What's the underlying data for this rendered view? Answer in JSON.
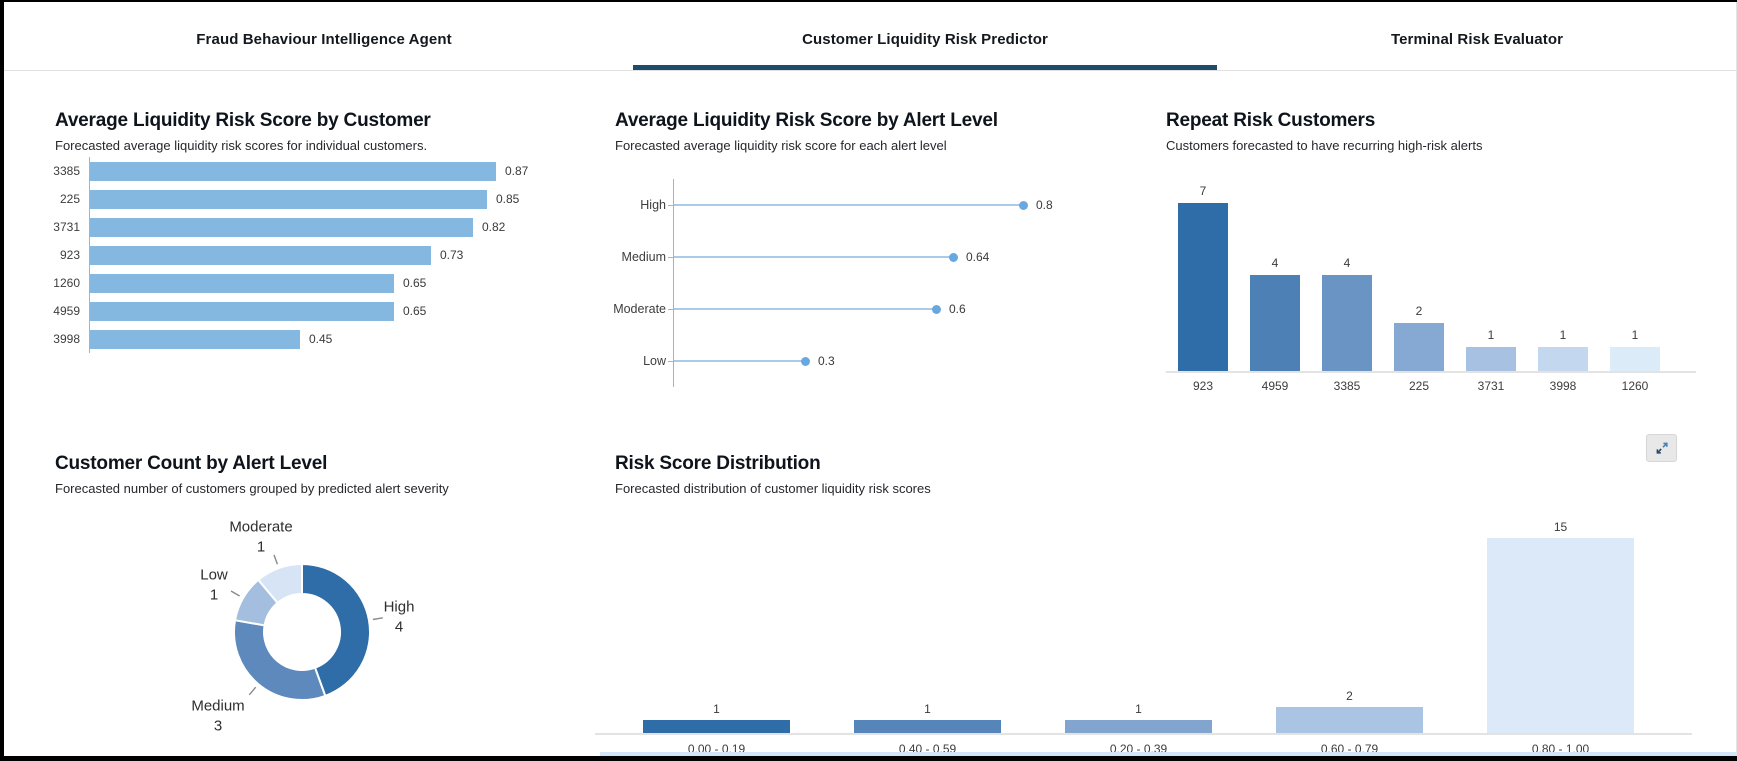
{
  "tabs": {
    "items": [
      {
        "label": "Fraud Behaviour Intelligence Agent",
        "active": false
      },
      {
        "label": "Customer Liquidity Risk Predictor",
        "active": true
      },
      {
        "label": "Terminal Risk Evaluator",
        "active": false
      }
    ],
    "active_underline_color": "#1d4d68"
  },
  "chart_data": [
    {
      "id": "avg_risk_by_customer",
      "type": "bar",
      "orientation": "horizontal",
      "title": "Average Liquidity Risk Score by Customer",
      "subtitle": "Forecasted average liquidity risk scores for individual customers.",
      "categories": [
        "3385",
        "225",
        "3731",
        "923",
        "1260",
        "4959",
        "3998"
      ],
      "values": [
        0.87,
        0.85,
        0.82,
        0.73,
        0.65,
        0.65,
        0.45
      ],
      "bar_color": "#85b8e1",
      "xlim": [
        0,
        1
      ],
      "grid": false
    },
    {
      "id": "avg_risk_by_alert_level",
      "type": "lollipop",
      "orientation": "horizontal",
      "title": "Average Liquidity Risk Score by Alert Level",
      "subtitle": "Forecasted average liquidity risk score for each alert level",
      "categories": [
        "High",
        "Medium",
        "Moderate",
        "Low"
      ],
      "values": [
        0.8,
        0.64,
        0.6,
        0.3
      ],
      "line_color": "#a9cbe9",
      "dot_color": "#69a8de",
      "xlim": [
        0,
        1
      ],
      "grid": false
    },
    {
      "id": "repeat_risk_customers",
      "type": "bar",
      "orientation": "vertical",
      "title": "Repeat Risk Customers",
      "subtitle": "Customers forecasted to have recurring high-risk alerts",
      "categories": [
        "923",
        "4959",
        "3385",
        "225",
        "3731",
        "3998",
        "1260"
      ],
      "values": [
        7,
        4,
        4,
        2,
        1,
        1,
        1
      ],
      "bar_colors": [
        "#2e6da8",
        "#4d80b4",
        "#6994c4",
        "#86a9d3",
        "#a6c1e1",
        "#c3d7ee",
        "#dcebf8"
      ],
      "ylim": [
        0,
        7
      ],
      "grid": false
    },
    {
      "id": "customer_count_by_alert_level",
      "type": "pie",
      "subtype": "donut",
      "title": "Customer Count by Alert Level",
      "subtitle": "Forecasted number of customers grouped by predicted alert severity",
      "segments": [
        {
          "label": "High",
          "value": 4,
          "color": "#2e6da8"
        },
        {
          "label": "Medium",
          "value": 3,
          "color": "#5d89bc"
        },
        {
          "label": "Low",
          "value": 1,
          "color": "#a3bedf"
        },
        {
          "label": "Moderate",
          "value": 1,
          "color": "#d7e4f5"
        }
      ]
    },
    {
      "id": "risk_score_distribution",
      "type": "bar",
      "orientation": "vertical",
      "title": "Risk Score Distribution",
      "subtitle": "Forecasted distribution of customer liquidity risk scores",
      "categories": [
        "0.00 - 0.19",
        "0.40 - 0.59",
        "0.20 - 0.39",
        "0.60 - 0.79",
        "0.80 - 1.00"
      ],
      "values": [
        1,
        1,
        1,
        2,
        15
      ],
      "bar_colors": [
        "#2e6da8",
        "#5585b9",
        "#82a5d0",
        "#aac4e3",
        "#dbe9f8"
      ],
      "ylim": [
        0,
        15
      ],
      "grid": false
    }
  ],
  "icons": {
    "expand": "expand-icon"
  }
}
